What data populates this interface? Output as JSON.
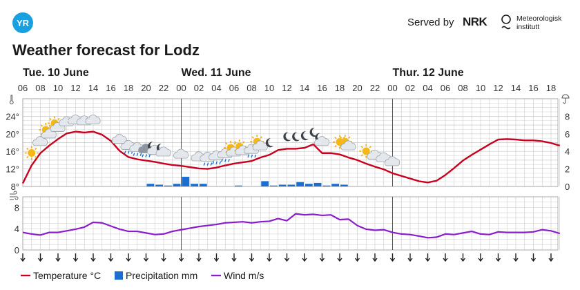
{
  "header": {
    "logo_text": "YR",
    "served_by": "Served by",
    "nrk": "NRK",
    "met_line1": "Meteorologisk",
    "met_line2": "institutt",
    "title": "Weather forecast for Lodz"
  },
  "colors": {
    "temperature": "#c8001e",
    "precipitation": "#1a6fd1",
    "wind": "#8a1ccc",
    "grid": "#c9c9c9",
    "brand": "#19a0e0"
  },
  "chart_data": [
    {
      "type": "line",
      "title": "",
      "days": [
        {
          "label": "Tue. 10 June",
          "start_hour": 6
        },
        {
          "label": "Wed. 11 June",
          "start_hour": 24
        },
        {
          "label": "Thur. 12 June",
          "start_hour": 48
        }
      ],
      "x_hours": [
        6,
        7,
        8,
        9,
        10,
        11,
        12,
        13,
        14,
        15,
        16,
        17,
        18,
        19,
        20,
        21,
        22,
        23,
        24,
        25,
        26,
        27,
        28,
        29,
        30,
        31,
        32,
        33,
        34,
        35,
        36,
        37,
        38,
        39,
        40,
        41,
        42,
        43,
        44,
        45,
        46,
        47,
        48,
        49,
        50,
        51,
        52,
        53,
        54,
        55,
        56,
        57,
        58,
        59,
        60,
        61,
        62,
        63,
        64,
        65,
        66,
        67
      ],
      "x_tick_labels": [
        "06",
        "08",
        "10",
        "12",
        "14",
        "16",
        "18",
        "20",
        "22",
        "00",
        "02",
        "04",
        "06",
        "08",
        "10",
        "12",
        "14",
        "16",
        "18",
        "20",
        "22",
        "00",
        "02",
        "04",
        "06",
        "08",
        "10",
        "12",
        "14",
        "16",
        "18"
      ],
      "series": [
        {
          "name": "Temperature °C",
          "unit": "°C",
          "axis": "left",
          "values": [
            8.7,
            12.8,
            15.6,
            17.3,
            18.8,
            20.1,
            20.5,
            20.3,
            20.5,
            19.8,
            18.4,
            16.1,
            14.7,
            14.2,
            13.9,
            13.6,
            13.2,
            12.9,
            12.7,
            12.4,
            12.1,
            12.0,
            12.3,
            12.8,
            13.2,
            13.5,
            13.8,
            14.6,
            15.2,
            16.3,
            16.6,
            16.6,
            16.8,
            17.6,
            15.6,
            15.6,
            15.3,
            14.6,
            14.0,
            13.2,
            12.5,
            11.9,
            11.0,
            10.4,
            9.8,
            9.2,
            8.9,
            9.3,
            10.6,
            12.2,
            13.9,
            15.2,
            16.4,
            17.6,
            18.7,
            18.8,
            18.7,
            18.5,
            18.5,
            18.3,
            17.9,
            17.3
          ]
        },
        {
          "name": "Precipitation mm",
          "unit": "mm",
          "axis": "right",
          "type": "bar",
          "hours": [
            20,
            21,
            22,
            23,
            24,
            25,
            26,
            30,
            33,
            34,
            35,
            36,
            37,
            38,
            39,
            40,
            41,
            42
          ],
          "values": [
            0.3,
            0.2,
            0.1,
            0.3,
            1.1,
            0.3,
            0.3,
            0.1,
            0.6,
            0.1,
            0.2,
            0.2,
            0.5,
            0.3,
            0.4,
            0.1,
            0.3,
            0.2
          ]
        },
        {
          "name": "Wind m/s",
          "unit": "m/s",
          "axis": "wind",
          "values": [
            3.3,
            3.0,
            2.8,
            3.3,
            3.3,
            3.6,
            3.9,
            4.3,
            5.2,
            5.1,
            4.5,
            3.9,
            3.5,
            3.5,
            3.2,
            2.9,
            3.0,
            3.5,
            3.8,
            4.1,
            4.4,
            4.6,
            4.8,
            5.1,
            5.2,
            5.3,
            5.1,
            5.3,
            5.4,
            5.9,
            5.5,
            6.8,
            6.6,
            6.7,
            6.5,
            6.6,
            5.7,
            5.8,
            4.6,
            3.9,
            3.7,
            3.8,
            3.3,
            3.0,
            2.9,
            2.6,
            2.3,
            2.4,
            3.0,
            2.9,
            3.2,
            3.5,
            3.0,
            2.9,
            3.4,
            3.3,
            3.3,
            3.3,
            3.4,
            3.8,
            3.6,
            3.1
          ]
        }
      ],
      "temp_axis": {
        "ticks": [
          "8°",
          "12°",
          "16°",
          "20°",
          "24°"
        ],
        "range": [
          8,
          28
        ]
      },
      "precip_axis": {
        "ticks": [
          "0",
          "2",
          "4",
          "6",
          "8"
        ],
        "range": [
          0,
          10
        ]
      },
      "wind_axis": {
        "ticks": [
          "0",
          "4",
          "8"
        ],
        "range": [
          0,
          10
        ]
      },
      "symbols": [
        {
          "hour": 7,
          "icon": "sun"
        },
        {
          "hour": 8,
          "icon": "cloud"
        },
        {
          "hour": 9,
          "icon": "partly-cloudy-day"
        },
        {
          "hour": 10,
          "icon": "partly-cloudy-day"
        },
        {
          "hour": 11,
          "icon": "cloud"
        },
        {
          "hour": 12,
          "icon": "cloud"
        },
        {
          "hour": 13,
          "icon": "cloud"
        },
        {
          "hour": 14,
          "icon": "cloud"
        },
        {
          "hour": 17,
          "icon": "cloud"
        },
        {
          "hour": 18,
          "icon": "rain"
        },
        {
          "hour": 19,
          "icon": "rain"
        },
        {
          "hour": 20,
          "icon": "heavy-rain"
        },
        {
          "hour": 21,
          "icon": "partly-cloudy-night"
        },
        {
          "hour": 22,
          "icon": "partly-cloudy-night"
        },
        {
          "hour": 24,
          "icon": "cloud"
        },
        {
          "hour": 26,
          "icon": "cloud"
        },
        {
          "hour": 27,
          "icon": "rain"
        },
        {
          "hour": 28,
          "icon": "rain"
        },
        {
          "hour": 29,
          "icon": "partly-cloudy-rain"
        },
        {
          "hour": 30,
          "icon": "partly-cloudy-day"
        },
        {
          "hour": 31,
          "icon": "partly-cloudy-day"
        },
        {
          "hour": 32,
          "icon": "partly-cloudy-rain"
        },
        {
          "hour": 33,
          "icon": "partly-cloudy-day"
        },
        {
          "hour": 34,
          "icon": "moon"
        },
        {
          "hour": 36,
          "icon": "moon"
        },
        {
          "hour": 37,
          "icon": "moon"
        },
        {
          "hour": 38,
          "icon": "moon"
        },
        {
          "hour": 39,
          "icon": "moon"
        },
        {
          "hour": 40,
          "icon": "partly-cloudy-night"
        },
        {
          "hour": 42,
          "icon": "sun"
        },
        {
          "hour": 43,
          "icon": "partly-cloudy-day"
        },
        {
          "hour": 45,
          "icon": "sun"
        },
        {
          "hour": 46,
          "icon": "cloud"
        },
        {
          "hour": 47,
          "icon": "cloud"
        },
        {
          "hour": 48,
          "icon": "cloud"
        }
      ],
      "wind_arrows_deg": [
        180,
        180,
        180,
        180,
        180,
        180,
        180,
        180,
        180,
        180,
        180,
        180,
        180,
        180,
        180,
        180,
        180,
        180,
        180,
        180,
        180,
        180,
        180,
        180,
        180,
        180,
        180,
        180,
        180,
        180,
        180
      ],
      "legend": [
        "Temperature °C",
        "Precipitation mm",
        "Wind m/s"
      ],
      "legend_position": "bottom-left",
      "grid": true
    }
  ]
}
